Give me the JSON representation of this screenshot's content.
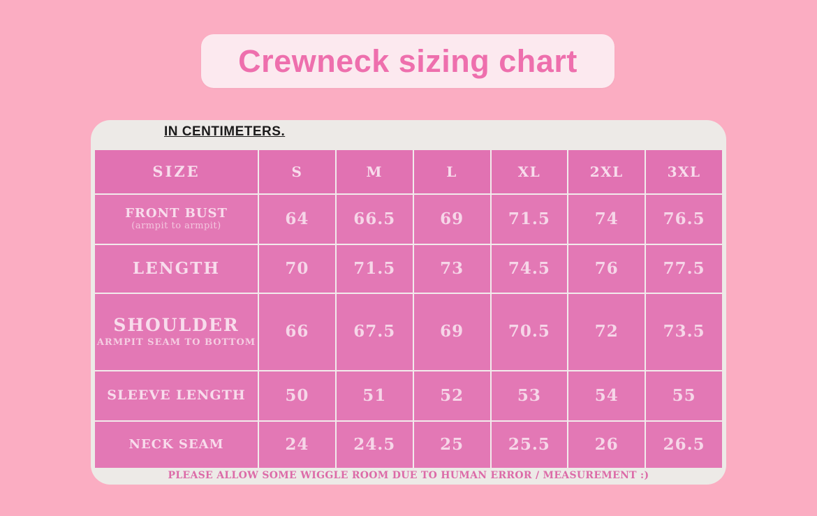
{
  "page": {
    "title": "Crewneck sizing chart",
    "unit_note": "IN CENTIMETERS.",
    "footer_note": "PLEASE ALLOW SOME WIGGLE ROOM DUE TO HUMAN ERROR / MEASUREMENT :)"
  },
  "colors": {
    "page_bg": "#fbadc2",
    "title_badge_bg": "#fce9ef",
    "title_text": "#ee6fad",
    "card_bg": "#edeae7",
    "header_cell_bg": "#e172b2",
    "body_cell_bg": "#e378b5",
    "cell_text": "#f8dcec",
    "grid_line": "#f2ebec",
    "unit_note_text": "#1c1b1b",
    "footer_text": "#dc6ba8"
  },
  "chart_data": {
    "type": "table",
    "title": "Crewneck sizing chart",
    "unit": "centimeters",
    "columns": [
      "SIZE",
      "S",
      "M",
      "L",
      "XL",
      "2XL",
      "3XL"
    ],
    "rows": [
      {
        "label": "FRONT BUST",
        "sublabel": "(armpit to armpit)",
        "values": [
          "64",
          "66.5",
          "69",
          "71.5",
          "74",
          "76.5"
        ]
      },
      {
        "label": "LENGTH",
        "sublabel": "",
        "values": [
          "70",
          "71.5",
          "73",
          "74.5",
          "76",
          "77.5"
        ]
      },
      {
        "label": "SHOULDER",
        "sublabel": "ARMPIT SEAM TO BOTTOM",
        "values": [
          "66",
          "67.5",
          "69",
          "70.5",
          "72",
          "73.5"
        ]
      },
      {
        "label": "SLEEVE LENGTH",
        "sublabel": "",
        "values": [
          "50",
          "51",
          "52",
          "53",
          "54",
          "55"
        ]
      },
      {
        "label": "NECK SEAM",
        "sublabel": "",
        "values": [
          "24",
          "24.5",
          "25",
          "25.5",
          "26",
          "26.5"
        ]
      }
    ]
  }
}
